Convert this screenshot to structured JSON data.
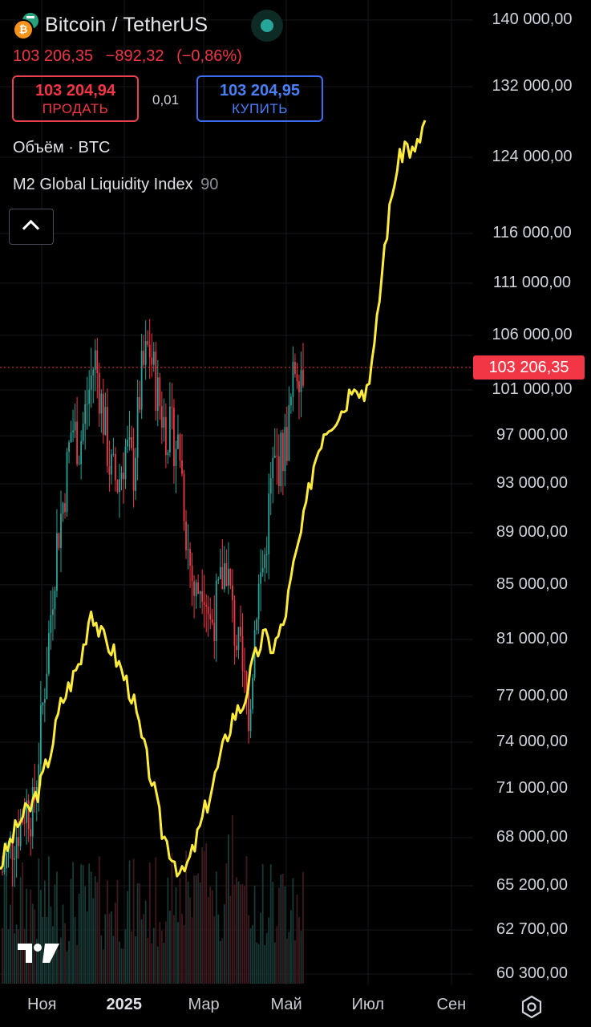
{
  "header": {
    "title": "Bitcoin / TetherUS",
    "base_coin_icon": "bitcoin-coin-icon",
    "quote_coin_icon": "tether-coin-icon",
    "status": "market-open",
    "last_price": "103 206,35",
    "change": "−892,32",
    "change_pct": "(−0,86%)",
    "sell_price": "103 204,94",
    "sell_label": "ПРОДАТЬ",
    "spread": "0,01",
    "buy_price": "103 204,95",
    "buy_label": "КУПИТЬ"
  },
  "indicators": {
    "volume_label": "Объём · BTC",
    "m2_label": "M2 Global Liquidity Index",
    "m2_param": "90",
    "collapse_icon": "chevron-up-icon"
  },
  "price_axis": {
    "labels": [
      "140 000,00",
      "132 000,00",
      "124 000,00",
      "116 000,00",
      "111 000,00",
      "106 000,00",
      "101 000,00",
      "97 000,00",
      "93 000,00",
      "89 000,00",
      "85 000,00",
      "81 000,00",
      "77 000,00",
      "74 000,00",
      "71 000,00",
      "68 000,00",
      "65 200,00",
      "62 700,00",
      "60 300,00"
    ],
    "last_price_tag": "103 206,35"
  },
  "time_axis": {
    "labels": [
      {
        "text": "Ноя",
        "bold": false
      },
      {
        "text": "2025",
        "bold": true
      },
      {
        "text": "Мар",
        "bold": false
      },
      {
        "text": "Май",
        "bold": false
      },
      {
        "text": "Июл",
        "bold": false
      },
      {
        "text": "Сен",
        "bold": false
      }
    ]
  },
  "colors": {
    "up": "#26a69a",
    "down": "#f23645",
    "m2_line": "#ffeb3b",
    "price_line": "#f23645",
    "background": "#000000"
  },
  "footer": {
    "logo": "tradingview-logo",
    "settings_icon": "settings-hexagon-icon"
  },
  "chart_data": {
    "type": "candlestick",
    "symbol": "Bitcoin / TetherUS",
    "scale": "log",
    "grid": true,
    "ylim": [
      60300,
      140000
    ],
    "x_ticks": [
      "Ноя",
      "2025",
      "Мар",
      "Май",
      "Июл",
      "Сен"
    ],
    "last_price": 103206.35,
    "btc_closes_weekly_approx": [
      {
        "month": "2024-10",
        "values": [
          66000,
          67500,
          68500,
          70000
        ]
      },
      {
        "month": "2024-11",
        "values": [
          69500,
          75000,
          81000,
          88000,
          92000,
          98000
        ]
      },
      {
        "month": "2024-12",
        "values": [
          96000,
          100000,
          104000,
          99000,
          94000,
          93000
        ]
      },
      {
        "month": "2025-01",
        "values": [
          96000,
          94000,
          102000,
          105000,
          101000
        ]
      },
      {
        "month": "2025-02",
        "values": [
          98000,
          97000,
          96000,
          88000,
          84000
        ]
      },
      {
        "month": "2025-03",
        "values": [
          86000,
          82000,
          84000,
          87000,
          82000
        ]
      },
      {
        "month": "2025-04",
        "values": [
          79000,
          76000,
          84000,
          87000,
          94000,
          95000
        ]
      },
      {
        "month": "2025-05",
        "values": [
          97000,
          103500,
          103200
        ]
      }
    ],
    "series": [
      {
        "name": "M2 Global Liquidity Index",
        "param": 90,
        "color": "#ffeb3b",
        "shape_note": "overlay line on its own scale (not mapped to price axis)",
        "points_index_approx": [
          [
            0,
            10
          ],
          [
            4,
            14
          ],
          [
            8,
            18
          ],
          [
            12,
            20
          ],
          [
            16,
            24
          ],
          [
            20,
            30
          ],
          [
            24,
            38
          ],
          [
            28,
            42
          ],
          [
            32,
            46
          ],
          [
            36,
            55
          ],
          [
            40,
            50
          ],
          [
            44,
            48
          ],
          [
            48,
            44
          ],
          [
            52,
            40
          ],
          [
            56,
            32
          ],
          [
            60,
            25
          ],
          [
            64,
            16
          ],
          [
            68,
            12
          ],
          [
            72,
            8
          ],
          [
            76,
            12
          ],
          [
            80,
            18
          ],
          [
            84,
            24
          ],
          [
            88,
            30
          ],
          [
            92,
            36
          ],
          [
            96,
            38
          ],
          [
            100,
            45
          ],
          [
            104,
            50
          ],
          [
            108,
            48
          ],
          [
            112,
            52
          ],
          [
            116,
            62
          ],
          [
            120,
            70
          ],
          [
            124,
            80
          ],
          [
            128,
            86
          ],
          [
            132,
            88
          ],
          [
            136,
            90
          ],
          [
            140,
            95
          ],
          [
            144,
            92
          ],
          [
            148,
            100
          ],
          [
            152,
            118
          ],
          [
            156,
            130
          ],
          [
            160,
            136
          ],
          [
            164,
            134
          ],
          [
            168,
            140
          ]
        ]
      }
    ]
  }
}
